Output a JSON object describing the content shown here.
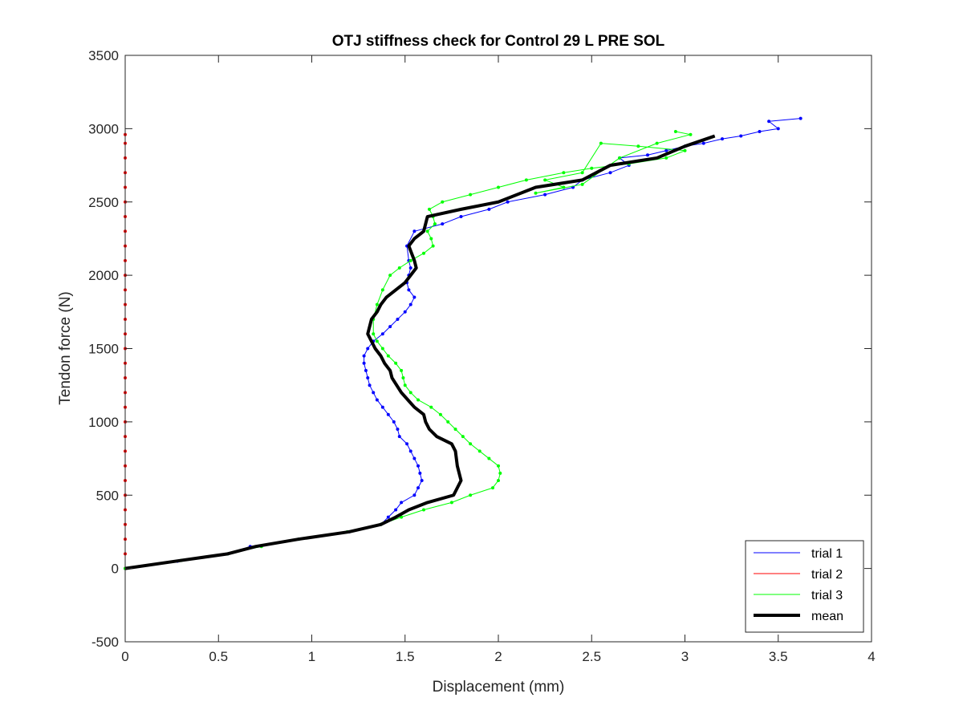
{
  "chart_data": {
    "type": "line",
    "title": "OTJ stiffness check for Control 29 L PRE SOL",
    "xlabel": "Displacement (mm)",
    "ylabel": "Tendon force (N)",
    "xlim": [
      0,
      4
    ],
    "ylim": [
      -500,
      3500
    ],
    "xticks": [
      "0",
      "0.5",
      "1",
      "1.5",
      "2",
      "2.5",
      "3",
      "3.5",
      "4"
    ],
    "yticks": [
      "-500",
      "0",
      "500",
      "1000",
      "1500",
      "2000",
      "2500",
      "3000",
      "3500"
    ],
    "grid": false,
    "legend_position": "bottom-right",
    "series": [
      {
        "name": "trial 1",
        "color": "#0000ff",
        "style": "thin line with dot markers",
        "x": [
          0,
          0.28,
          0.55,
          0.67,
          0.93,
          1.2,
          1.37,
          1.41,
          1.45,
          1.48,
          1.55,
          1.57,
          1.59,
          1.58,
          1.57,
          1.55,
          1.53,
          1.51,
          1.47,
          1.46,
          1.44,
          1.41,
          1.38,
          1.35,
          1.33,
          1.31,
          1.3,
          1.29,
          1.28,
          1.28,
          1.3,
          1.33,
          1.38,
          1.42,
          1.46,
          1.5,
          1.53,
          1.55,
          1.52,
          1.51,
          1.52,
          1.53,
          1.52,
          1.51,
          1.55,
          1.7,
          1.8,
          1.95,
          2.05,
          2.25,
          2.4,
          2.45,
          2.6,
          2.7,
          2.65,
          2.8,
          2.9,
          3.0,
          3.1,
          3.2,
          3.3,
          3.4,
          3.5,
          3.45,
          3.62
        ],
        "y": [
          0,
          50,
          100,
          150,
          200,
          250,
          300,
          350,
          400,
          450,
          500,
          550,
          600,
          650,
          700,
          750,
          800,
          850,
          900,
          950,
          1000,
          1050,
          1100,
          1150,
          1200,
          1250,
          1300,
          1350,
          1400,
          1450,
          1500,
          1550,
          1600,
          1650,
          1700,
          1750,
          1800,
          1850,
          1900,
          1950,
          2000,
          2050,
          2100,
          2200,
          2300,
          2350,
          2400,
          2450,
          2500,
          2550,
          2600,
          2650,
          2700,
          2750,
          2800,
          2820,
          2850,
          2880,
          2900,
          2930,
          2950,
          2980,
          3000,
          3050,
          3070
        ]
      },
      {
        "name": "trial 2",
        "color": "#ff0000",
        "style": "thin line with dot markers",
        "x": [
          0,
          0,
          0,
          0,
          0,
          0,
          0,
          0,
          0,
          0,
          0,
          0,
          0,
          0,
          0,
          0,
          0,
          0,
          0,
          0,
          0,
          0,
          0,
          0,
          0,
          0,
          0,
          0,
          0,
          0,
          0
        ],
        "y": [
          0,
          100,
          200,
          300,
          400,
          500,
          600,
          700,
          800,
          900,
          1000,
          1100,
          1200,
          1300,
          1400,
          1500,
          1600,
          1700,
          1800,
          1900,
          2000,
          2100,
          2200,
          2300,
          2400,
          2500,
          2600,
          2700,
          2800,
          2900,
          2960
        ]
      },
      {
        "name": "trial 3",
        "color": "#00ff00",
        "style": "thin line with dot markers",
        "x": [
          0,
          0.3,
          0.55,
          0.73,
          0.93,
          1.19,
          1.37,
          1.48,
          1.6,
          1.75,
          1.85,
          1.97,
          2.0,
          2.01,
          2.0,
          1.95,
          1.9,
          1.85,
          1.81,
          1.77,
          1.73,
          1.69,
          1.64,
          1.57,
          1.53,
          1.5,
          1.49,
          1.48,
          1.45,
          1.41,
          1.38,
          1.35,
          1.33,
          1.33,
          1.35,
          1.38,
          1.42,
          1.47,
          1.53,
          1.6,
          1.65,
          1.64,
          1.62,
          1.66,
          1.65,
          1.63,
          1.7,
          1.85,
          2.0,
          2.15,
          2.35,
          2.5,
          2.7,
          2.9,
          3.0,
          2.75,
          2.55,
          2.45,
          2.25,
          2.35,
          2.2,
          2.45,
          2.65,
          2.85,
          3.03,
          2.95
        ],
        "y": [
          0,
          55,
          100,
          150,
          200,
          250,
          300,
          350,
          400,
          450,
          500,
          550,
          600,
          650,
          700,
          750,
          800,
          850,
          900,
          950,
          1000,
          1050,
          1100,
          1150,
          1200,
          1250,
          1300,
          1350,
          1400,
          1450,
          1500,
          1550,
          1600,
          1700,
          1800,
          1900,
          2000,
          2050,
          2100,
          2150,
          2200,
          2250,
          2300,
          2350,
          2400,
          2450,
          2500,
          2550,
          2600,
          2650,
          2700,
          2730,
          2760,
          2800,
          2850,
          2880,
          2900,
          2700,
          2650,
          2600,
          2560,
          2620,
          2800,
          2900,
          2960,
          2980
        ]
      },
      {
        "name": "mean",
        "color": "#000000",
        "style": "thick line",
        "x": [
          0,
          0.3,
          0.55,
          0.7,
          0.93,
          1.2,
          1.37,
          1.45,
          1.52,
          1.62,
          1.76,
          1.8,
          1.78,
          1.77,
          1.75,
          1.67,
          1.63,
          1.61,
          1.6,
          1.55,
          1.48,
          1.43,
          1.42,
          1.39,
          1.37,
          1.34,
          1.32,
          1.3,
          1.32,
          1.35,
          1.37,
          1.4,
          1.45,
          1.5,
          1.53,
          1.56,
          1.55,
          1.52,
          1.55,
          1.6,
          1.61,
          1.62,
          1.8,
          2.0,
          2.2,
          2.45,
          2.6,
          2.85,
          3.0,
          3.16
        ],
        "y": [
          0,
          55,
          100,
          150,
          200,
          250,
          300,
          350,
          400,
          450,
          500,
          600,
          700,
          800,
          850,
          900,
          950,
          1000,
          1050,
          1100,
          1200,
          1300,
          1350,
          1400,
          1450,
          1500,
          1550,
          1600,
          1700,
          1750,
          1800,
          1850,
          1900,
          1950,
          2000,
          2050,
          2100,
          2200,
          2250,
          2300,
          2350,
          2400,
          2450,
          2500,
          2600,
          2650,
          2750,
          2800,
          2880,
          2950
        ]
      }
    ]
  }
}
